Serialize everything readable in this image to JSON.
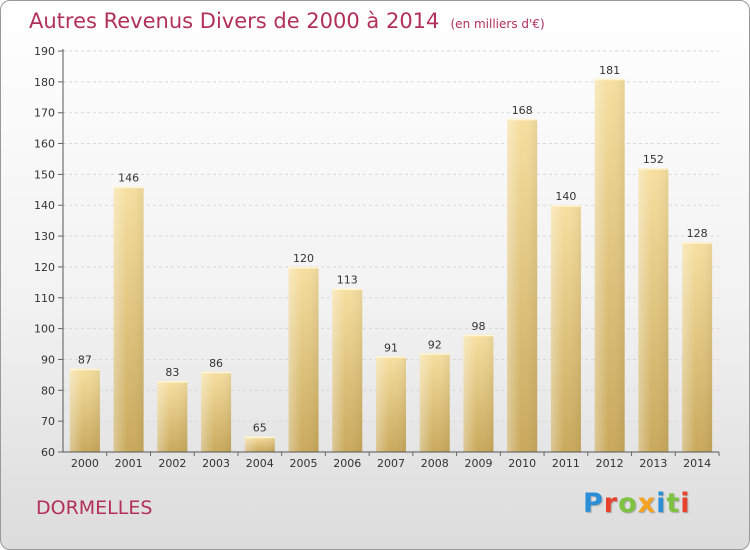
{
  "header": {
    "title": "Autres Revenus Divers de 2000 à 2014",
    "subtitle": "(en milliers d'€)"
  },
  "footer": {
    "commune": "DORMELLES",
    "brand": "Proxiti"
  },
  "colors": {
    "title": "#b2305a",
    "bar_light": "#f6dfa0",
    "bar_dark": "#c9a95c",
    "gridline": "#d8d8d8"
  },
  "chart_data": {
    "type": "bar",
    "title": "Autres Revenus Divers de 2000 à 2014",
    "subtitle": "(en milliers d'€)",
    "xlabel": "",
    "ylabel": "",
    "categories": [
      "2000",
      "2001",
      "2002",
      "2003",
      "2004",
      "2005",
      "2006",
      "2007",
      "2008",
      "2009",
      "2010",
      "2011",
      "2012",
      "2013",
      "2014"
    ],
    "values": [
      87,
      146,
      83,
      86,
      65,
      120,
      113,
      91,
      92,
      98,
      168,
      140,
      181,
      152,
      128
    ],
    "ylim": [
      60,
      190
    ],
    "yticks": [
      60,
      70,
      80,
      90,
      100,
      110,
      120,
      130,
      140,
      150,
      160,
      170,
      180,
      190
    ],
    "grid": true,
    "data_labels": true,
    "legend": "none"
  }
}
